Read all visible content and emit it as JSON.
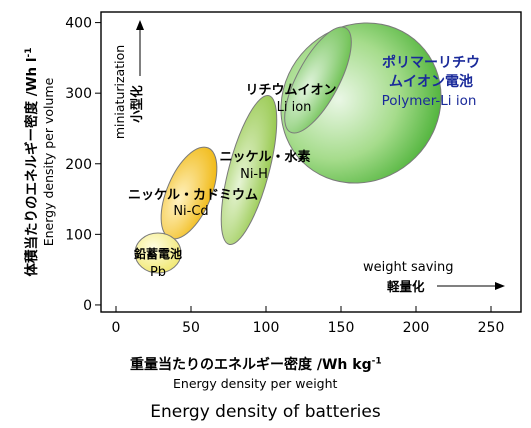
{
  "chart_data": {
    "type": "scatter",
    "title": "Energy density of batteries",
    "xlabel": {
      "ja": "重量当たりのエネルギー密度 /Wh kg",
      "sup": "-1",
      "en": "Energy density per weight"
    },
    "ylabel": {
      "ja": "体積当たりのエネルギー密度 /Wh l",
      "sup": "-1",
      "en": "Energy density per volume"
    },
    "xlim": [
      -10,
      270
    ],
    "ylim": [
      -10,
      415
    ],
    "xticks": [
      "0",
      "50",
      "100",
      "150",
      "200",
      "250"
    ],
    "yticks": [
      "0",
      "100",
      "200",
      "300",
      "400"
    ],
    "xtick_values": [
      0,
      50,
      100,
      150,
      200,
      250
    ],
    "ytick_values": [
      0,
      100,
      200,
      300,
      400
    ],
    "regions": [
      {
        "label_ja": "鉛蓄電池",
        "label_en": "Pb",
        "x_range": [
          25,
          55
        ],
        "y_range": [
          35,
          120
        ],
        "color": "#f6ee8a"
      },
      {
        "label_ja": "ニッケル・カドミウム",
        "label_en": "Ni-Cd",
        "x_range": [
          30,
          70
        ],
        "y_range": [
          75,
          225
        ],
        "color": "#f4c020"
      },
      {
        "label_ja": "ニッケル・水素",
        "label_en": "Ni-H",
        "x_range": [
          70,
          110
        ],
        "y_range": [
          85,
          300
        ],
        "color": "#a8d468"
      },
      {
        "label_ja": "リチウムイオン",
        "label_en": "Li ion",
        "x_range": [
          115,
          165
        ],
        "y_range": [
          190,
          390
        ],
        "color": "#74c858"
      },
      {
        "label_ja": "ポリマーリチウムイオン電池",
        "label_en": "Polymer-Li ion",
        "x_range": [
          130,
          215
        ],
        "y_range": [
          190,
          415
        ],
        "color": "#5cbe48"
      }
    ],
    "annotations": {
      "miniaturization": {
        "en": "miniaturization",
        "ja": "小型化"
      },
      "weight_saving": {
        "en": "weight saving",
        "ja": "軽量化"
      }
    },
    "grid": false,
    "colors": {
      "axis": "#000000",
      "polymer_text": "#1a2a9a"
    }
  }
}
